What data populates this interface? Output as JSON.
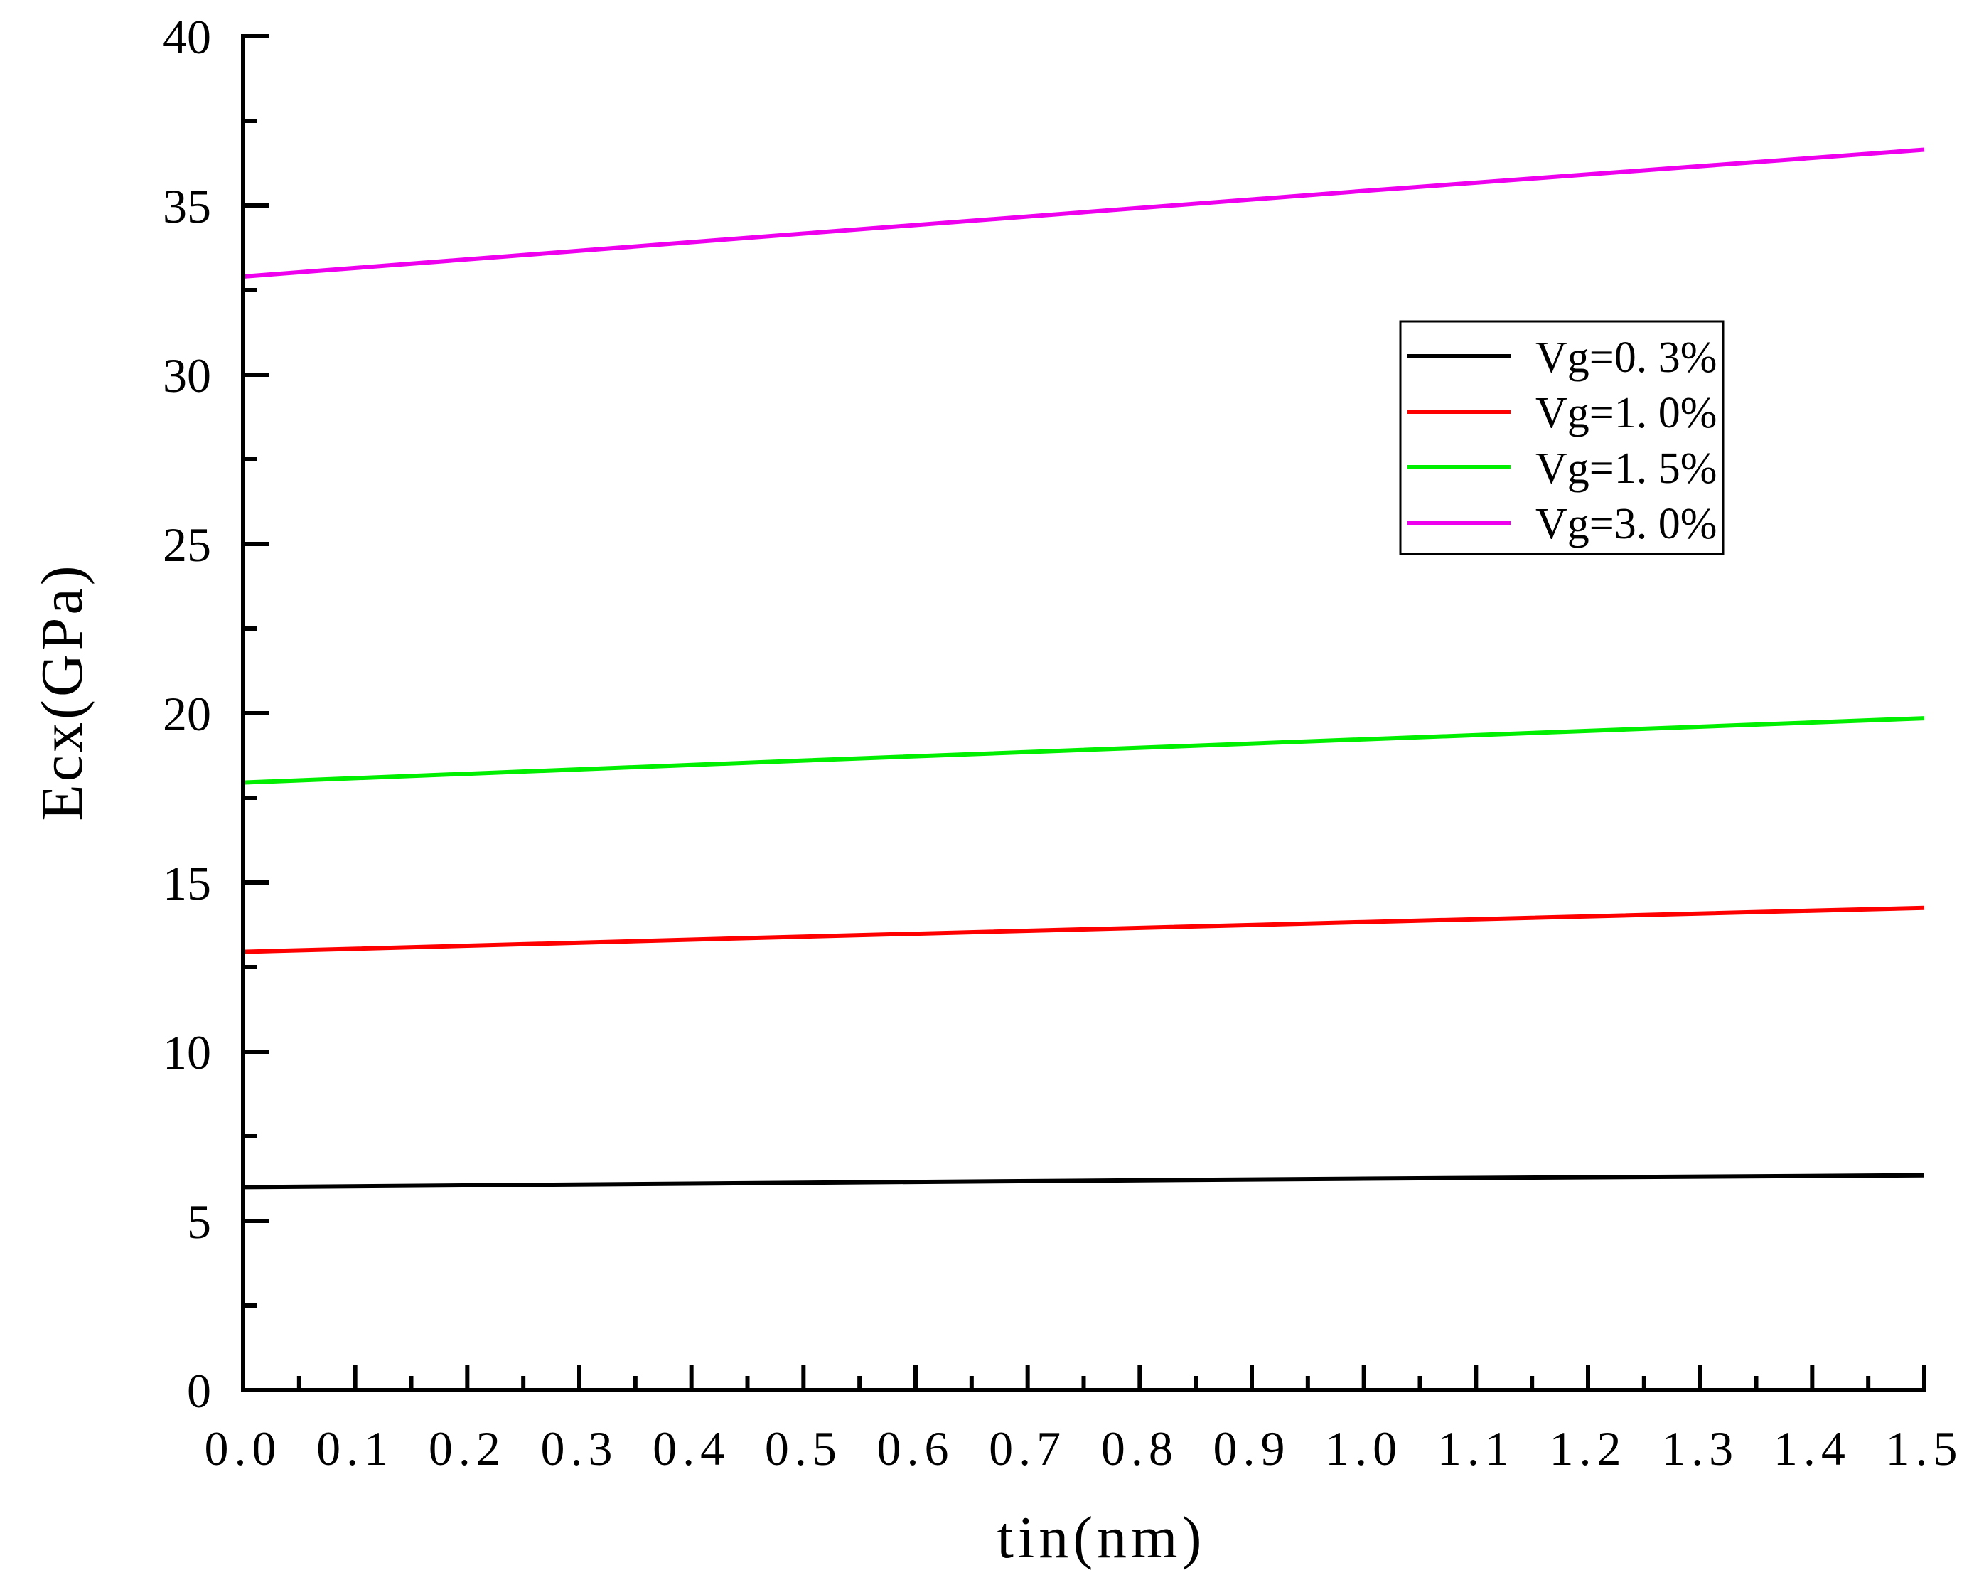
{
  "chart_data": {
    "type": "line",
    "xlabel": "tin(nm)",
    "ylabel": "Ecx(GPa)",
    "xlim": [
      0.0,
      1.5
    ],
    "ylim": [
      0,
      40
    ],
    "x_ticks": [
      "0.0",
      "0.1",
      "0.2",
      "0.3",
      "0.4",
      "0.5",
      "0.6",
      "0.7",
      "0.8",
      "0.9",
      "1.0",
      "1.1",
      "1.2",
      "1.3",
      "1.4",
      "1.5"
    ],
    "y_ticks": [
      "0",
      "5",
      "10",
      "15",
      "20",
      "25",
      "30",
      "35",
      "40"
    ],
    "grid": false,
    "legend_position": "upper-right",
    "series": [
      {
        "name": "Vg=0. 3%",
        "color": "#000000",
        "x": [
          0.0,
          0.5,
          1.0,
          1.5
        ],
        "y": [
          6.0,
          6.13,
          6.25,
          6.35
        ]
      },
      {
        "name": "Vg=1. 0%",
        "color": "#ff0000",
        "x": [
          0.0,
          0.5,
          1.0,
          1.5
        ],
        "y": [
          12.95,
          13.4,
          13.83,
          14.25
        ]
      },
      {
        "name": "Vg=1. 5%",
        "color": "#00ee00",
        "x": [
          0.0,
          0.5,
          1.0,
          1.5
        ],
        "y": [
          17.95,
          18.6,
          19.23,
          19.85
        ]
      },
      {
        "name": "Vg=3. 0%",
        "color": "#ee00ee",
        "x": [
          0.0,
          0.5,
          1.0,
          1.5
        ],
        "y": [
          32.9,
          34.17,
          35.43,
          36.65
        ]
      }
    ]
  }
}
